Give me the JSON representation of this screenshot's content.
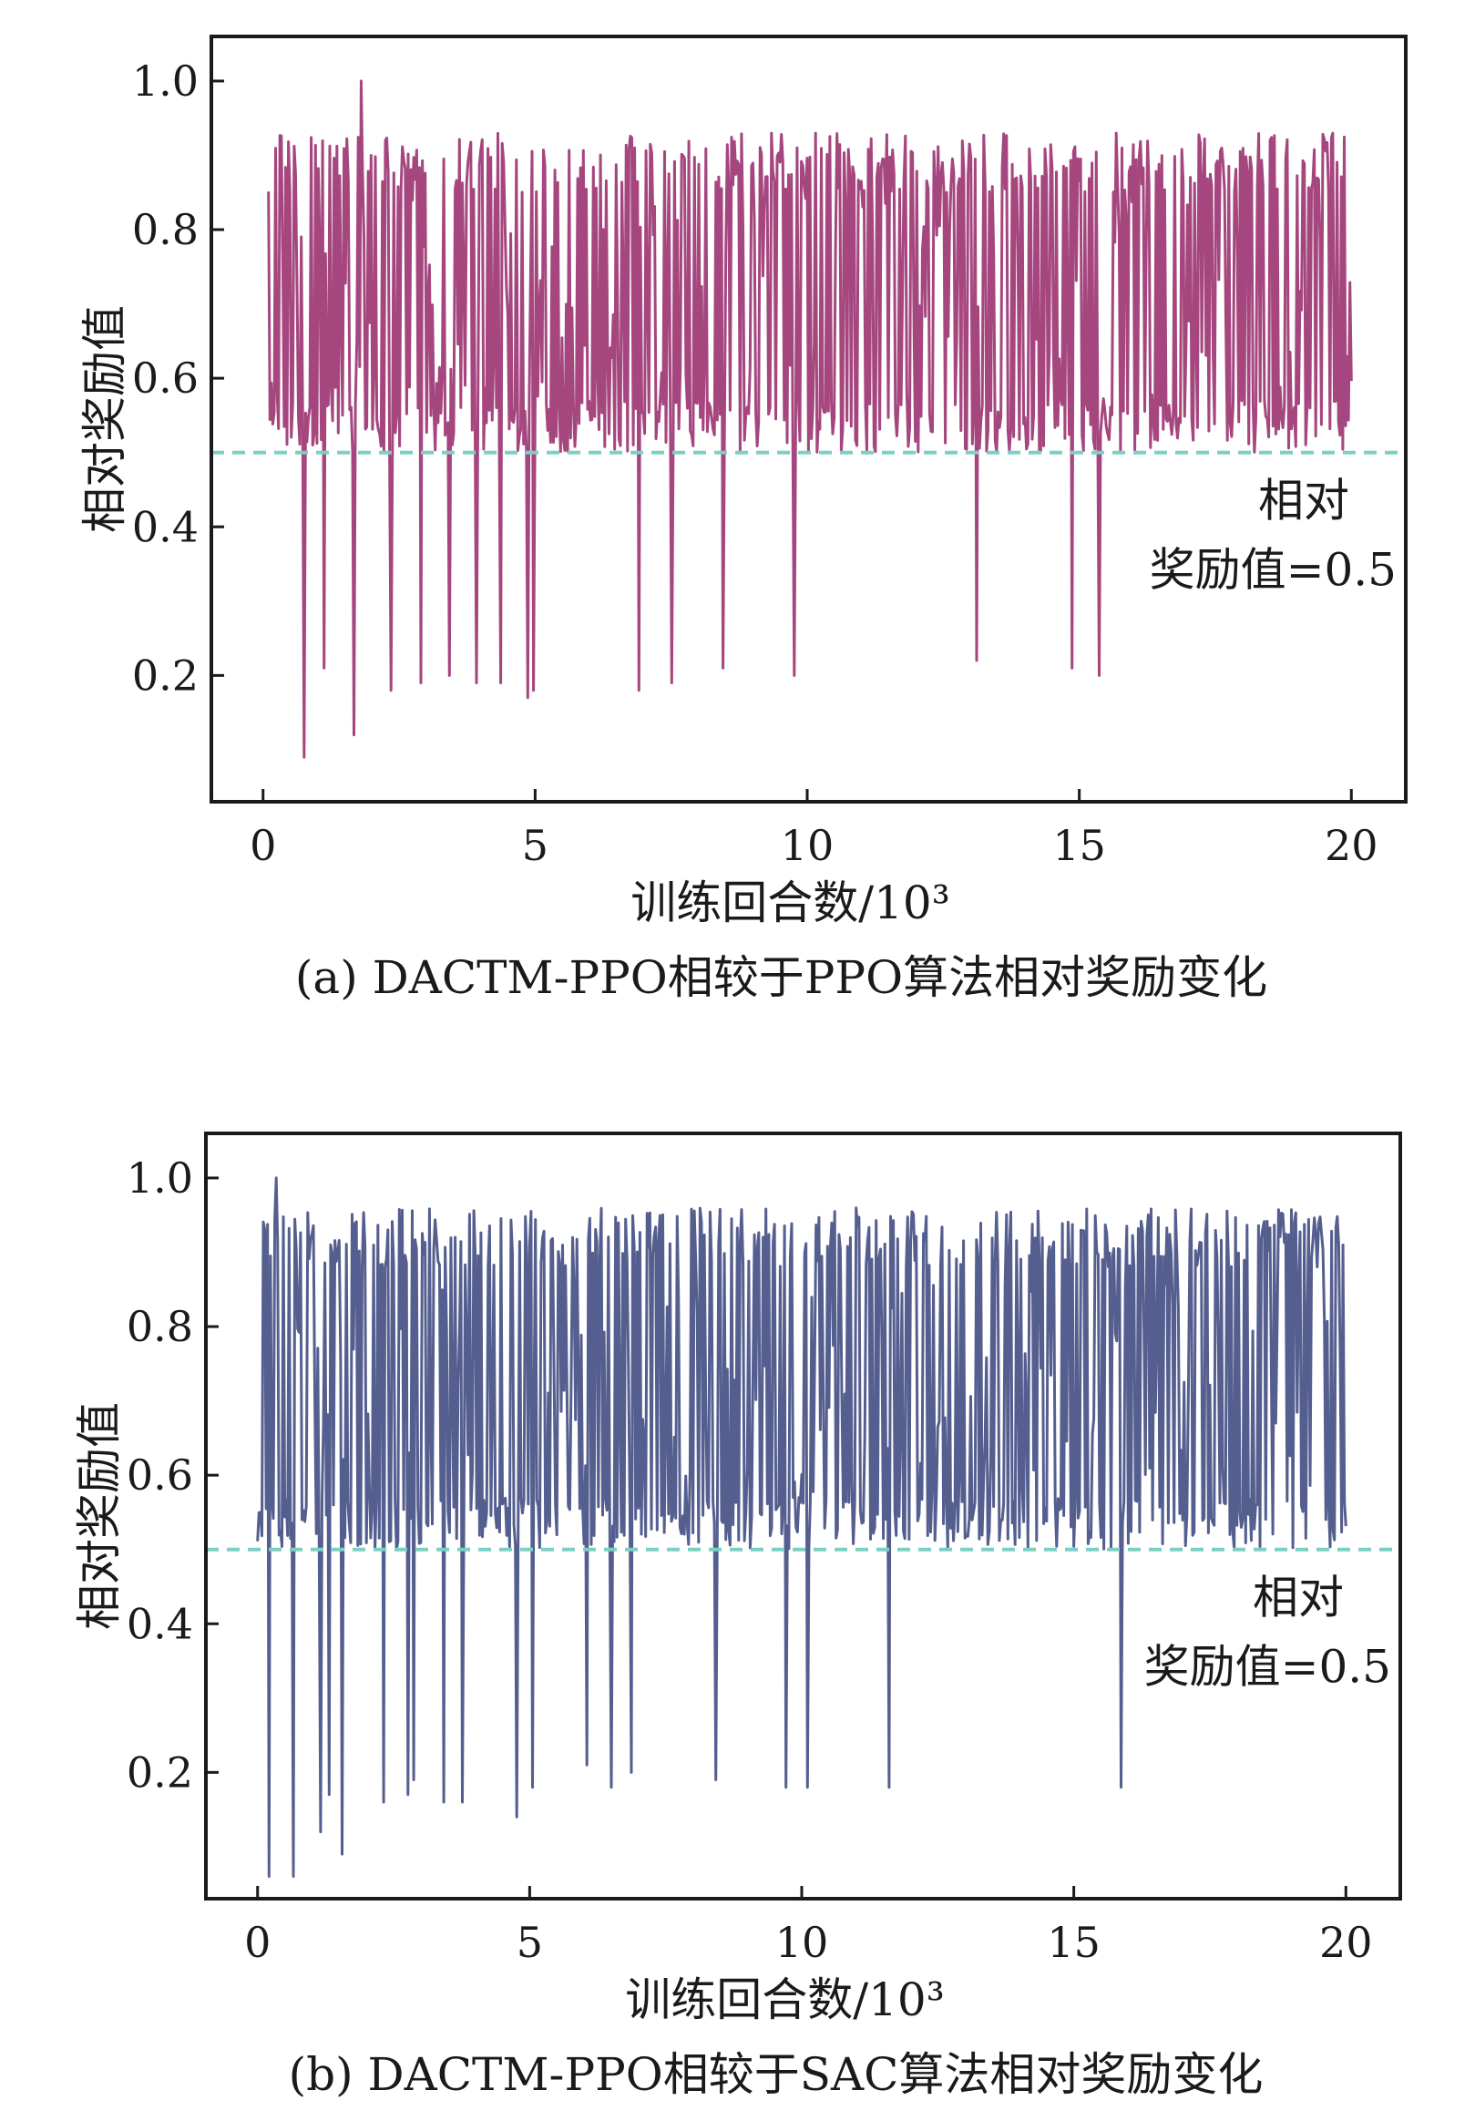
{
  "chart_data": [
    {
      "type": "line",
      "caption": "(a) DACTM-PPO相较于PPO算法相对奖励变化",
      "xlabel": "训练回合数/10³",
      "ylabel": "相对奖励值",
      "xlim": [
        -0.95,
        21.0
      ],
      "ylim": [
        0.03,
        1.06
      ],
      "x_ticks": [
        0,
        5,
        10,
        15,
        20
      ],
      "x_tick_labels": [
        "0",
        "5",
        "10",
        "15",
        "20"
      ],
      "y_ticks": [
        0.2,
        0.4,
        0.6,
        0.8,
        1.0
      ],
      "y_tick_labels": [
        "0.2",
        "0.4",
        "0.6",
        "0.8",
        "1.0"
      ],
      "grid": false,
      "series_color": "#a5467f",
      "reference_line": {
        "y": 0.5,
        "color": "#7ccfc4",
        "style": "dashed"
      },
      "annotation": {
        "lines": [
          "相对",
          "奖励值=0.5"
        ]
      },
      "x_range": [
        0.1,
        20.0
      ],
      "upper_band": [
        0.85,
        0.93
      ],
      "low_spikes": [
        [
          0.75,
          0.09
        ],
        [
          1.1,
          0.21
        ],
        [
          1.65,
          0.12
        ],
        [
          2.35,
          0.18
        ],
        [
          2.9,
          0.19
        ],
        [
          3.4,
          0.2
        ],
        [
          3.9,
          0.19
        ],
        [
          4.35,
          0.19
        ],
        [
          4.85,
          0.17
        ],
        [
          4.95,
          0.18
        ],
        [
          6.9,
          0.18
        ],
        [
          7.5,
          0.19
        ],
        [
          8.45,
          0.21
        ],
        [
          9.75,
          0.2
        ],
        [
          13.1,
          0.22
        ],
        [
          14.85,
          0.21
        ],
        [
          15.35,
          0.2
        ]
      ],
      "peak": [
        1.8,
        1.0
      ]
    },
    {
      "type": "line",
      "caption": "(b) DACTM-PPO相较于SAC算法相对奖励变化",
      "xlabel": "训练回合数/10³",
      "ylabel": "相对奖励值",
      "xlim": [
        -0.95,
        21.0
      ],
      "ylim": [
        0.03,
        1.06
      ],
      "x_ticks": [
        0,
        5,
        10,
        15,
        20
      ],
      "x_tick_labels": [
        "0",
        "5",
        "10",
        "15",
        "20"
      ],
      "y_ticks": [
        0.2,
        0.4,
        0.6,
        0.8,
        1.0
      ],
      "y_tick_labels": [
        "0.2",
        "0.4",
        "0.6",
        "0.8",
        "1.0"
      ],
      "grid": false,
      "series_color": "#555f8f",
      "reference_line": {
        "y": 0.5,
        "color": "#7ccfc4",
        "style": "dashed"
      },
      "annotation": {
        "lines": [
          "相对",
          "奖励值=0.5"
        ]
      },
      "x_range": [
        0.0,
        20.0
      ],
      "upper_band": [
        0.88,
        0.96
      ],
      "low_spikes": [
        [
          0.2,
          0.06
        ],
        [
          0.65,
          0.06
        ],
        [
          1.15,
          0.12
        ],
        [
          1.3,
          0.17
        ],
        [
          1.55,
          0.09
        ],
        [
          2.3,
          0.16
        ],
        [
          2.75,
          0.17
        ],
        [
          2.85,
          0.19
        ],
        [
          3.4,
          0.16
        ],
        [
          3.75,
          0.16
        ],
        [
          4.75,
          0.14
        ],
        [
          5.05,
          0.18
        ],
        [
          6.05,
          0.21
        ],
        [
          6.5,
          0.18
        ],
        [
          6.85,
          0.2
        ],
        [
          8.4,
          0.19
        ],
        [
          9.7,
          0.18
        ],
        [
          10.1,
          0.18
        ],
        [
          11.6,
          0.18
        ],
        [
          15.85,
          0.18
        ]
      ],
      "peak": [
        0.35,
        1.0
      ]
    }
  ]
}
